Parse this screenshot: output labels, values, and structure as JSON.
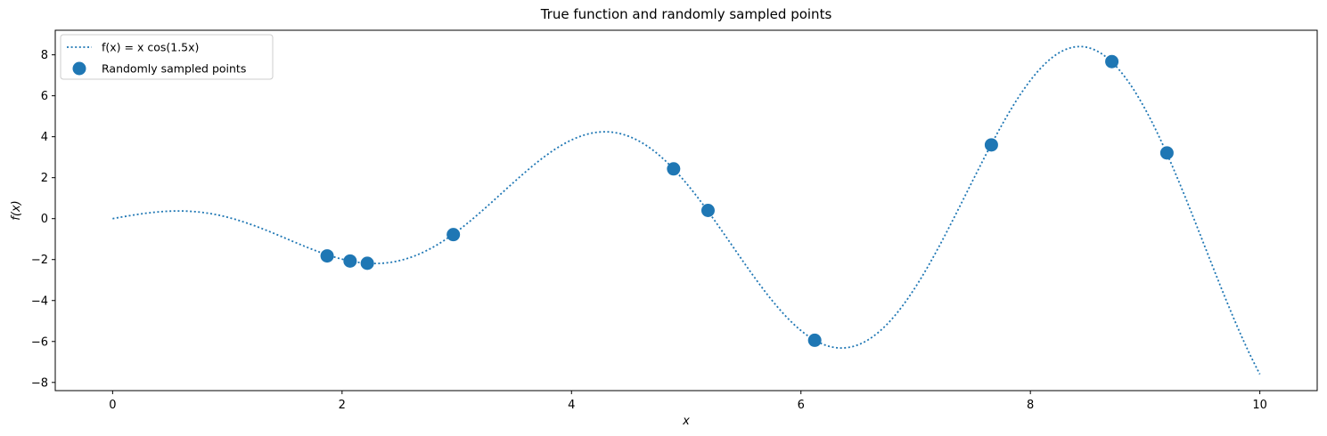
{
  "chart_data": {
    "type": "scatter",
    "title": "True function and randomly sampled points",
    "xlabel": "x",
    "ylabel": "f(x)",
    "xlim": [
      -0.5,
      10.5
    ],
    "ylim": [
      -8.4,
      9.2
    ],
    "xticks": [
      0,
      2,
      4,
      6,
      8,
      10
    ],
    "yticks": [
      -8,
      -6,
      -4,
      -2,
      0,
      2,
      4,
      6,
      8
    ],
    "xtick_labels": [
      "0",
      "2",
      "4",
      "6",
      "8",
      "10"
    ],
    "ytick_labels": [
      "−8",
      "−6",
      "−4",
      "−2",
      "0",
      "2",
      "4",
      "6",
      "8"
    ],
    "grid": false,
    "legend_position": "upper-left",
    "colors": {
      "series": "#1f77b4",
      "axes": "#000000"
    },
    "series": [
      {
        "name": "f(x) = x cos(1.5x)",
        "kind": "line",
        "style": "dotted",
        "function": "x*cos(1.5*x)",
        "x_range": [
          0,
          10
        ]
      },
      {
        "name": "Randomly sampled points",
        "kind": "scatter",
        "points": [
          {
            "x": 1.87,
            "y": -1.82
          },
          {
            "x": 2.07,
            "y": -2.07
          },
          {
            "x": 2.22,
            "y": -2.18
          },
          {
            "x": 2.97,
            "y": -0.78
          },
          {
            "x": 4.89,
            "y": 2.43
          },
          {
            "x": 5.19,
            "y": 0.4
          },
          {
            "x": 6.12,
            "y": -5.94
          },
          {
            "x": 7.66,
            "y": 3.6
          },
          {
            "x": 8.71,
            "y": 7.67
          },
          {
            "x": 9.19,
            "y": 3.21
          }
        ]
      }
    ]
  }
}
